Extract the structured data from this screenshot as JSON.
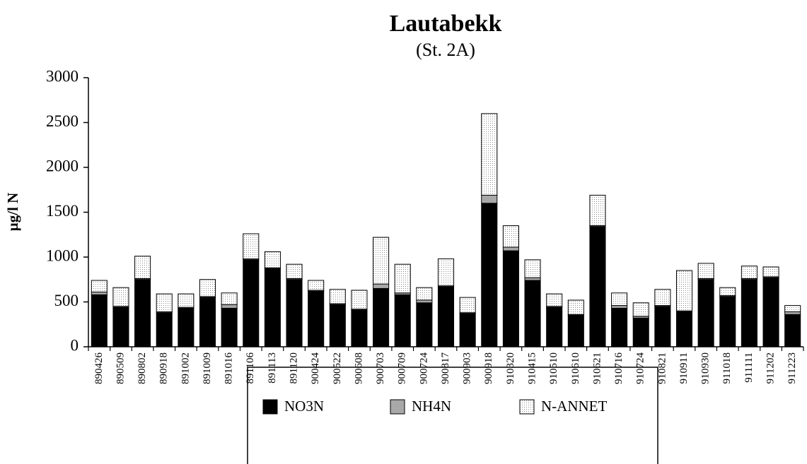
{
  "chart_data": {
    "type": "stacked-bar",
    "title": "Lautabekk",
    "subtitle": "(St. 2A)",
    "y_label": "µg/l N",
    "categories": [
      "890426",
      "890509",
      "890802",
      "890918",
      "891002",
      "891009",
      "891016",
      "891106",
      "891113",
      "891120",
      "900424",
      "900522",
      "900608",
      "900703",
      "900709",
      "900724",
      "900817",
      "900903",
      "900918",
      "910320",
      "910415",
      "910510",
      "910610",
      "910621",
      "910716",
      "910724",
      "910821",
      "910911",
      "910930",
      "911018",
      "911111",
      "911202",
      "911223"
    ],
    "series": [
      {
        "name": "NO3N",
        "color": "#000000",
        "values": [
          580,
          440,
          750,
          380,
          430,
          550,
          430,
          970,
          870,
          750,
          620,
          470,
          410,
          650,
          580,
          490,
          670,
          370,
          1600,
          1070,
          740,
          440,
          350,
          1340,
          430,
          320,
          450,
          390,
          750,
          560,
          750,
          770,
          360
        ]
      },
      {
        "name": "NH4N",
        "color": "#a8a8a8",
        "values": [
          30,
          10,
          10,
          10,
          10,
          10,
          40,
          10,
          10,
          10,
          10,
          10,
          10,
          50,
          20,
          30,
          10,
          10,
          90,
          40,
          30,
          10,
          10,
          10,
          30,
          20,
          10,
          10,
          10,
          10,
          10,
          10,
          30
        ]
      },
      {
        "name": "N-ANNET",
        "color": "#e4e4e4",
        "values": [
          130,
          210,
          250,
          200,
          150,
          190,
          130,
          280,
          180,
          160,
          110,
          160,
          210,
          520,
          320,
          140,
          300,
          170,
          910,
          240,
          200,
          140,
          160,
          340,
          140,
          150,
          180,
          450,
          170,
          90,
          140,
          110,
          70
        ]
      }
    ],
    "ylim": [
      0,
      3000
    ],
    "yticks": [
      0,
      500,
      1000,
      1500,
      2000,
      2500,
      3000
    ]
  }
}
